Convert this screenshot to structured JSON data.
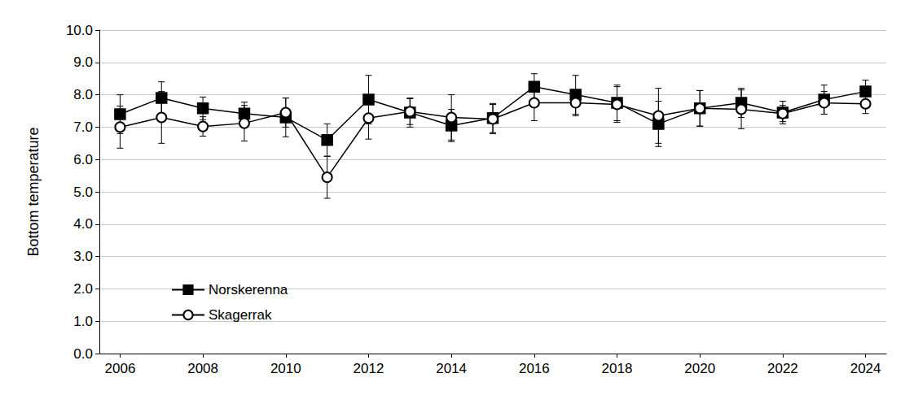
{
  "chart_data": {
    "type": "line",
    "y_label": "Bottom temperature",
    "xlim": [
      2005.5,
      2024.5
    ],
    "xticks": [
      2006,
      2008,
      2010,
      2012,
      2014,
      2016,
      2018,
      2020,
      2022,
      2024
    ],
    "ylim": [
      0,
      10
    ],
    "yticks": [
      {
        "value": 0,
        "label": "0.0"
      },
      {
        "value": 1,
        "label": "1.0"
      },
      {
        "value": 2,
        "label": "2.0"
      },
      {
        "value": 3,
        "label": "3.0"
      },
      {
        "value": 4,
        "label": "4.0"
      },
      {
        "value": 5,
        "label": "5.0"
      },
      {
        "value": 6,
        "label": "6.0"
      },
      {
        "value": 7,
        "label": "7.0"
      },
      {
        "value": 8,
        "label": "8.0"
      },
      {
        "value": 9,
        "label": "9.0"
      },
      {
        "value": 10,
        "label": "10.0"
      }
    ],
    "grid": true,
    "legend": "lower left",
    "x": [
      2006,
      2007,
      2008,
      2009,
      2010,
      2011,
      2012,
      2013,
      2014,
      2015,
      2016,
      2017,
      2018,
      2019,
      2020,
      2021,
      2022,
      2023,
      2024
    ],
    "series": [
      {
        "name": "Norskerenna",
        "color": "#000000",
        "marker": "square",
        "values": [
          7.4,
          7.9,
          7.58,
          7.42,
          7.3,
          6.6,
          7.85,
          7.45,
          7.05,
          7.28,
          8.25,
          8.0,
          7.75,
          7.1,
          7.58,
          7.75,
          7.45,
          7.85,
          8.1
        ],
        "errors": [
          0.6,
          0.5,
          0.35,
          0.35,
          0.6,
          0.5,
          0.75,
          0.45,
          0.5,
          0.45,
          0.4,
          0.6,
          0.55,
          0.7,
          0.55,
          0.45,
          0.35,
          0.45,
          0.35
        ]
      },
      {
        "name": "Skagerrak",
        "color": "#000000",
        "marker": "circle",
        "values": [
          7.0,
          7.3,
          7.02,
          7.12,
          7.45,
          5.45,
          7.28,
          7.48,
          7.3,
          7.25,
          7.75,
          7.75,
          7.7,
          7.35,
          7.58,
          7.55,
          7.42,
          7.75,
          7.72
        ],
        "errors": [
          0.65,
          0.8,
          0.3,
          0.55,
          0.45,
          0.65,
          0.65,
          0.4,
          0.7,
          0.45,
          0.55,
          0.4,
          0.55,
          0.85,
          0.55,
          0.6,
          0.25,
          0.35,
          0.3
        ]
      }
    ]
  }
}
